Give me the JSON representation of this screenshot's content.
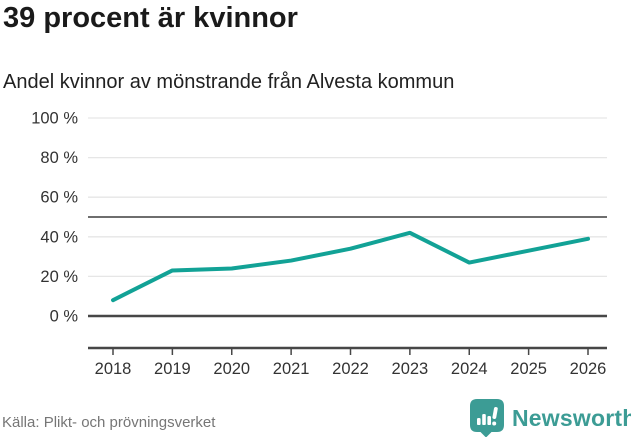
{
  "header": {
    "title": "39 procent är kvinnor",
    "subtitle": "Andel kvinnor av mönstrande från Alvesta kommun"
  },
  "chart_data": {
    "type": "line",
    "title": "Andel kvinnor av mönstrande från Alvesta kommun",
    "x": [
      2018,
      2019,
      2020,
      2021,
      2022,
      2023,
      2024,
      2025,
      2026
    ],
    "series": [
      {
        "name": "Andel kvinnor",
        "values": [
          8,
          23,
          24,
          28,
          34,
          42,
          27,
          33,
          39
        ],
        "color": "#12A296"
      }
    ],
    "xlabel": "",
    "ylabel": "",
    "ylim": [
      0,
      100
    ],
    "yticks": [
      0,
      20,
      40,
      60,
      80,
      100
    ],
    "ytick_suffix": " %",
    "reference_line": 50,
    "grid": true,
    "legend": "none"
  },
  "footer": {
    "source": "Källa: Plikt- och prövningsverket",
    "brand": "Newsworthy",
    "brand_icon": "bar-chart-badge-icon"
  },
  "colors": {
    "line": "#12A296",
    "grid": "#E6E6E6",
    "reference_line": "#6E6E6E",
    "axis": "#474747",
    "title_text": "#1A1A1A",
    "tick_text": "#333333",
    "source_text": "#767676",
    "brand": "#3C9C95"
  }
}
